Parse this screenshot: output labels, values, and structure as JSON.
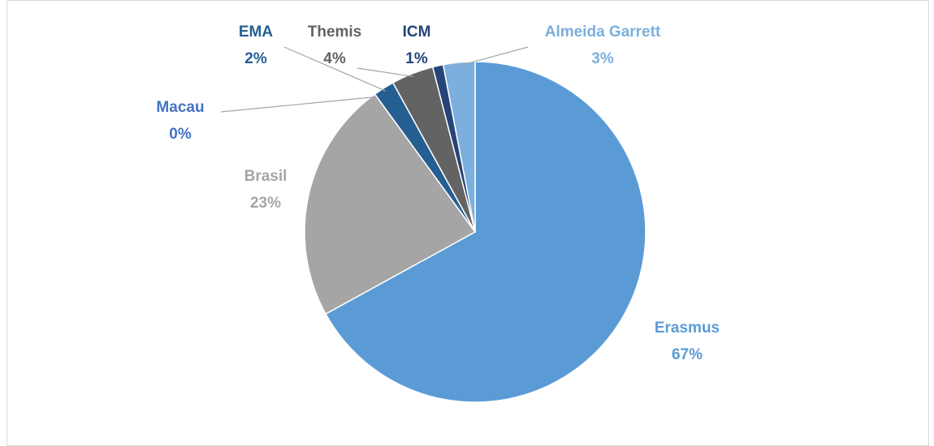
{
  "chart_data": {
    "type": "pie",
    "categories": [
      "Erasmus",
      "Brasil",
      "Macau",
      "EMA",
      "Themis",
      "ICM",
      "Almeida Garrett"
    ],
    "values": [
      67,
      23,
      0,
      2,
      4,
      1,
      3
    ],
    "value_labels": [
      "67%",
      "23%",
      "0%",
      "2%",
      "4%",
      "1%",
      "3%"
    ],
    "colors": [
      "#5b9bd5",
      "#a5a5a5",
      "#4472c4",
      "#255e91",
      "#636363",
      "#264478",
      "#7cafdd"
    ]
  }
}
